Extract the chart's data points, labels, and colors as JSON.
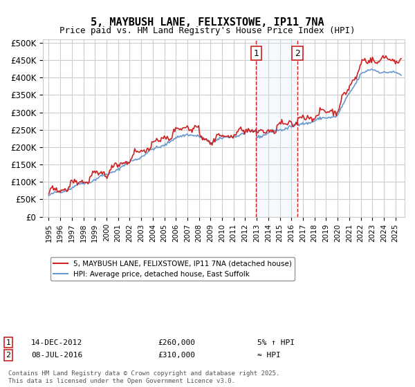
{
  "title1": "5, MAYBUSH LANE, FELIXSTOWE, IP11 7NA",
  "title2": "Price paid vs. HM Land Registry's House Price Index (HPI)",
  "ylabel_ticks": [
    "£0",
    "£50K",
    "£100K",
    "£150K",
    "£200K",
    "£250K",
    "£300K",
    "£350K",
    "£400K",
    "£450K",
    "£500K"
  ],
  "ytick_vals": [
    0,
    50000,
    100000,
    150000,
    200000,
    250000,
    300000,
    350000,
    400000,
    450000,
    500000
  ],
  "ylim": [
    0,
    510000
  ],
  "x_start_year": 1995,
  "x_end_year": 2025,
  "marker1_date_label": "14-DEC-2012",
  "marker1_price": "£260,000",
  "marker1_hpi": "5% ↑ HPI",
  "marker1_x": 2012.96,
  "marker2_date_label": "08-JUL-2016",
  "marker2_price": "£310,000",
  "marker2_hpi": "≈ HPI",
  "marker2_x": 2016.52,
  "hpi_color": "#6699cc",
  "price_color": "#cc2222",
  "background_color": "#ffffff",
  "grid_color": "#cccccc",
  "shade_color": "#ddeeff",
  "legend_line1": "5, MAYBUSH LANE, FELIXSTOWE, IP11 7NA (detached house)",
  "legend_line2": "HPI: Average price, detached house, East Suffolk",
  "footer": "Contains HM Land Registry data © Crown copyright and database right 2025.\nThis data is licensed under the Open Government Licence v3.0."
}
